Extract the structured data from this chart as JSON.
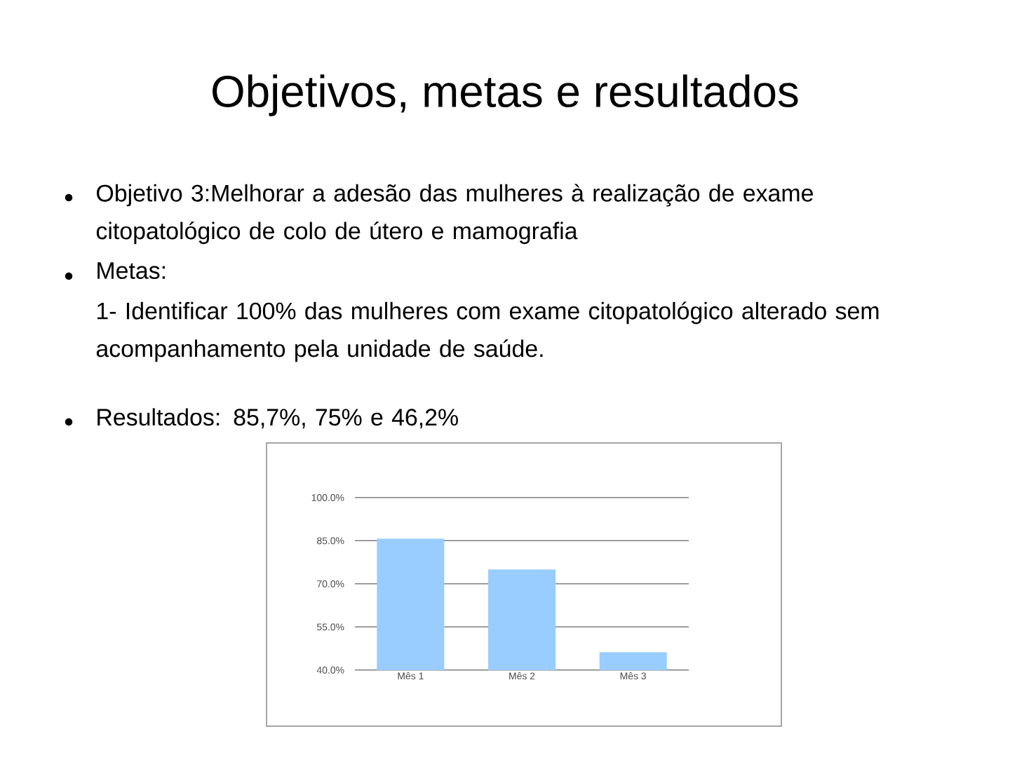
{
  "chart_data": {
    "type": "bar",
    "title": "Objetivos, metas e resultados",
    "annotations": [
      "Objetivo 3:Melhorar a adesão das mulheres à realização de exame citopatológico de colo de útero e mamografia",
      "Metas:",
      "1- Identificar 100% das mulheres com exame citopatológico alterado sem acompanhamento pela unidade de saúde.",
      "Resultados: 85,7%, 75% e 46,2%"
    ],
    "categories": [
      "Mês 1",
      "Mês 2",
      "Mês 3"
    ],
    "values": [
      85.7,
      75,
      46.2
    ],
    "color": "#99ccff",
    "ylim": [
      40,
      100
    ],
    "yticks": [
      {
        "value": 40,
        "label": "40.0%"
      },
      {
        "value": 55,
        "label": "55.0%"
      },
      {
        "value": 70,
        "label": "70.0%"
      },
      {
        "value": 85,
        "label": "85.0%"
      },
      {
        "value": 100,
        "label": "100.0%"
      }
    ],
    "grid": "y"
  }
}
